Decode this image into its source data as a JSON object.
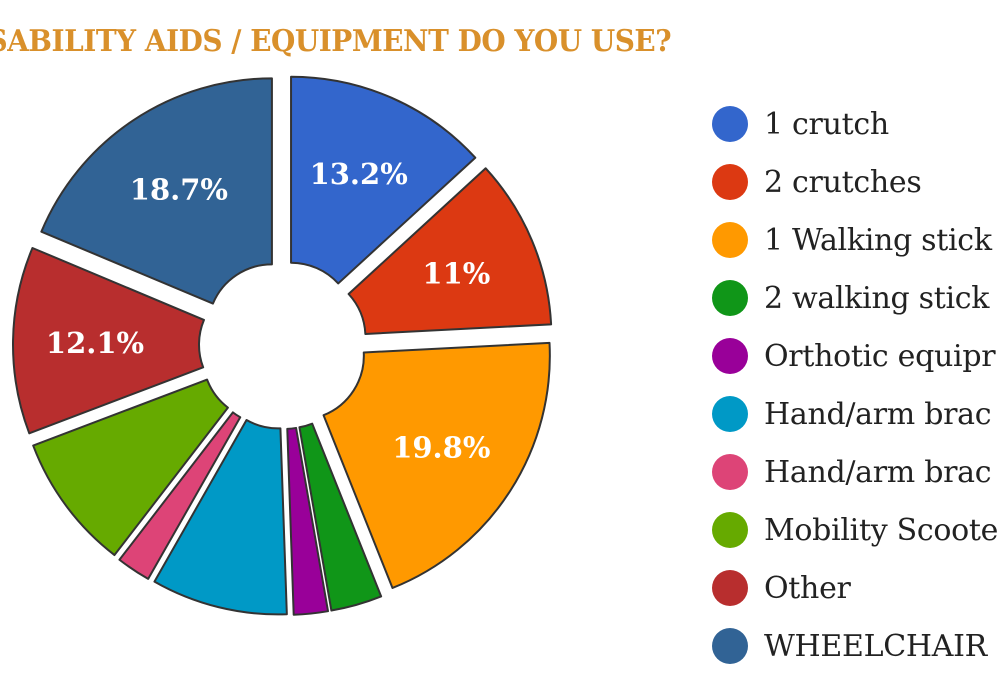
{
  "colors": {
    "title": "#d9902b",
    "slice_stroke": "#333333",
    "label_text": "#ffffff"
  },
  "chart_data": {
    "type": "pie",
    "title": "AT DISABILITY AIDS / EQUIPMENT DO YOU USE?",
    "legend_position": "right",
    "categories": [
      "1 crutch",
      "2 crutches",
      "1 Walking stick",
      "2 walking stick",
      "Orthotic equipr",
      "Hand/arm brac",
      "Hand/arm brac",
      "Mobility Scoote",
      "Other",
      "WHEELCHAIR"
    ],
    "values": [
      13.2,
      11,
      19.8,
      3.3,
      2.2,
      8.8,
      2.2,
      8.8,
      12.1,
      18.7
    ],
    "colors": [
      "#3366cc",
      "#dc3912",
      "#ff9900",
      "#109618",
      "#990099",
      "#0099c6",
      "#dd4477",
      "#66aa00",
      "#b82e2e",
      "#316395"
    ],
    "data_labels": [
      "13.2%",
      "11%",
      "19.8%",
      "",
      "",
      "",
      "",
      "",
      "12.1%",
      "18.7%"
    ],
    "donut_hole": true
  }
}
